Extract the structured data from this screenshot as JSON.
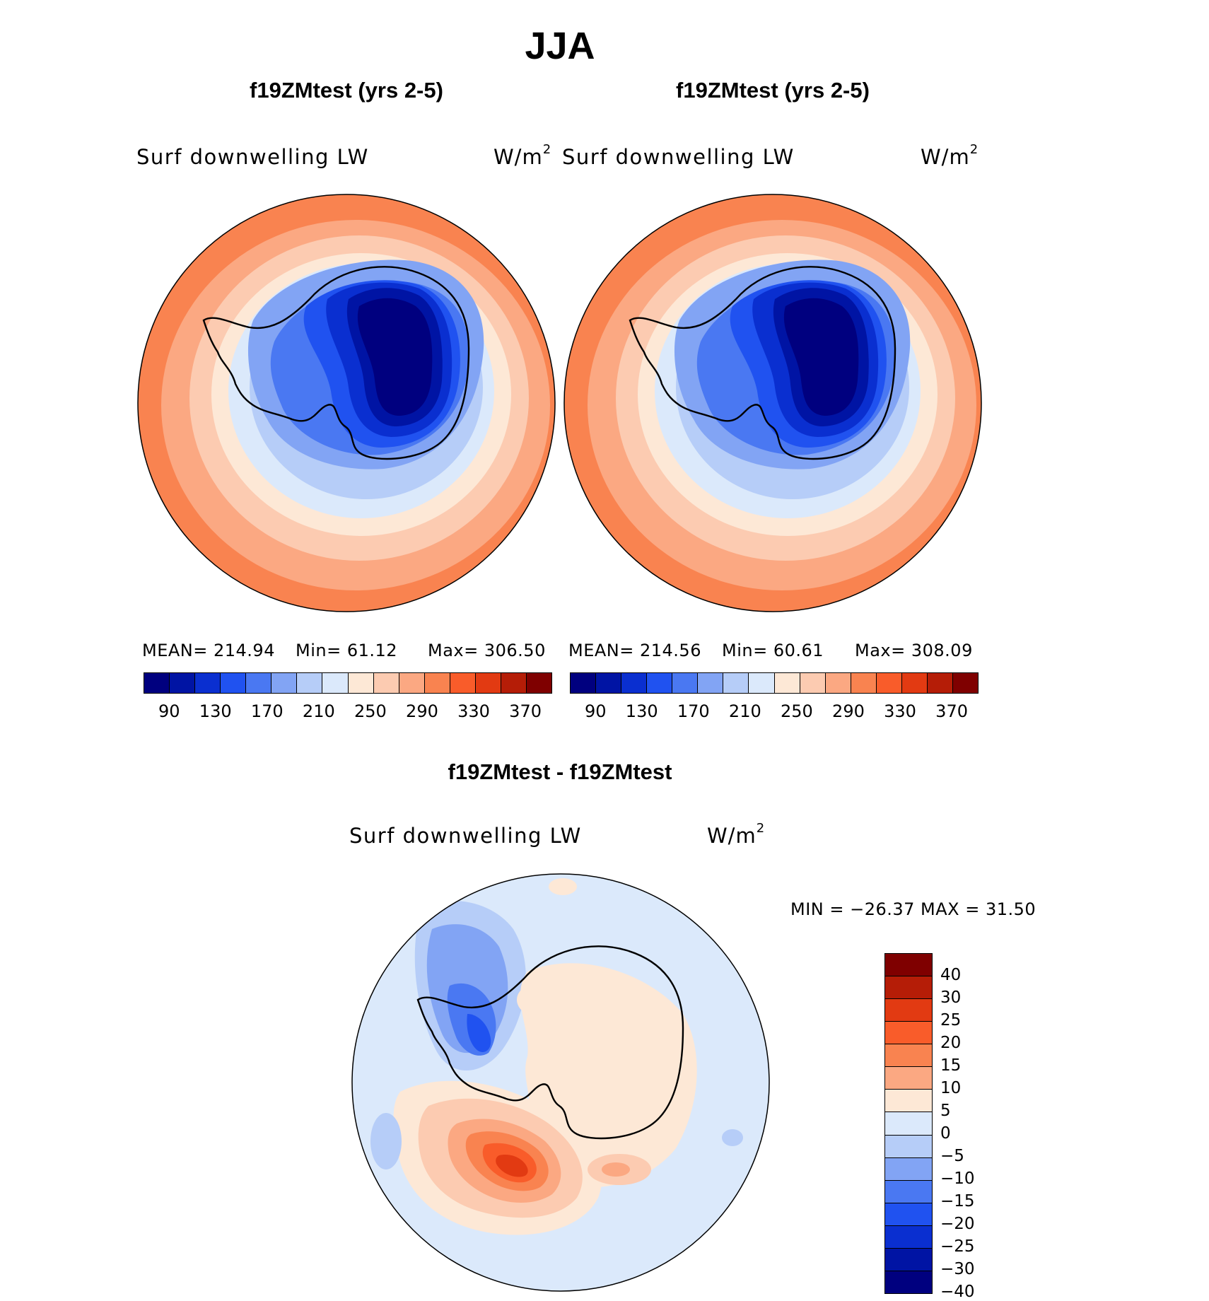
{
  "title": "JJA",
  "panels": [
    {
      "title": "f19ZMtest (yrs 2-5)",
      "variable": "Surf downwelling LW",
      "units": "W/m",
      "units_exp": "2",
      "stats": {
        "mean": "MEAN= 214.94",
        "min": "Min=   61.12",
        "max": "Max= 306.50"
      }
    },
    {
      "title": "f19ZMtest (yrs 2-5)",
      "variable": "Surf downwelling LW",
      "units": "W/m",
      "units_exp": "2",
      "stats": {
        "mean": "MEAN= 214.56",
        "min": "Min=   60.61",
        "max": "Max= 308.09"
      }
    }
  ],
  "diff_panel": {
    "title": "f19ZMtest - f19ZMtest",
    "variable": "Surf downwelling LW",
    "units": "W/m",
    "units_exp": "2",
    "minmax": "MIN = −26.37 MAX =   31.50"
  },
  "colorbar": {
    "ticks": [
      "90",
      "130",
      "170",
      "210",
      "250",
      "290",
      "330",
      "370"
    ],
    "colors": [
      "#00007f",
      "#0014a4",
      "#0a2fd0",
      "#2052f0",
      "#4a78f2",
      "#82a4f4",
      "#b6cdf8",
      "#dbe9fb",
      "#fde8d6",
      "#fccbb1",
      "#fba882",
      "#f98350",
      "#f95c2a",
      "#e23a12",
      "#b51d07",
      "#7f0000"
    ]
  },
  "diff_colorbar": {
    "labels": [
      "40",
      "30",
      "25",
      "20",
      "15",
      "10",
      "5",
      "0",
      "−5",
      "−10",
      "−15",
      "−20",
      "−25",
      "−30",
      "−40"
    ],
    "colors": [
      "#7f0000",
      "#b51d07",
      "#e23a12",
      "#f95c2a",
      "#f98350",
      "#fba882",
      "#fde8d6",
      "#dbe9fb",
      "#b6cdf8",
      "#82a4f4",
      "#4a78f2",
      "#2052f0",
      "#0a2fd0",
      "#0014a4",
      "#00007f"
    ]
  }
}
